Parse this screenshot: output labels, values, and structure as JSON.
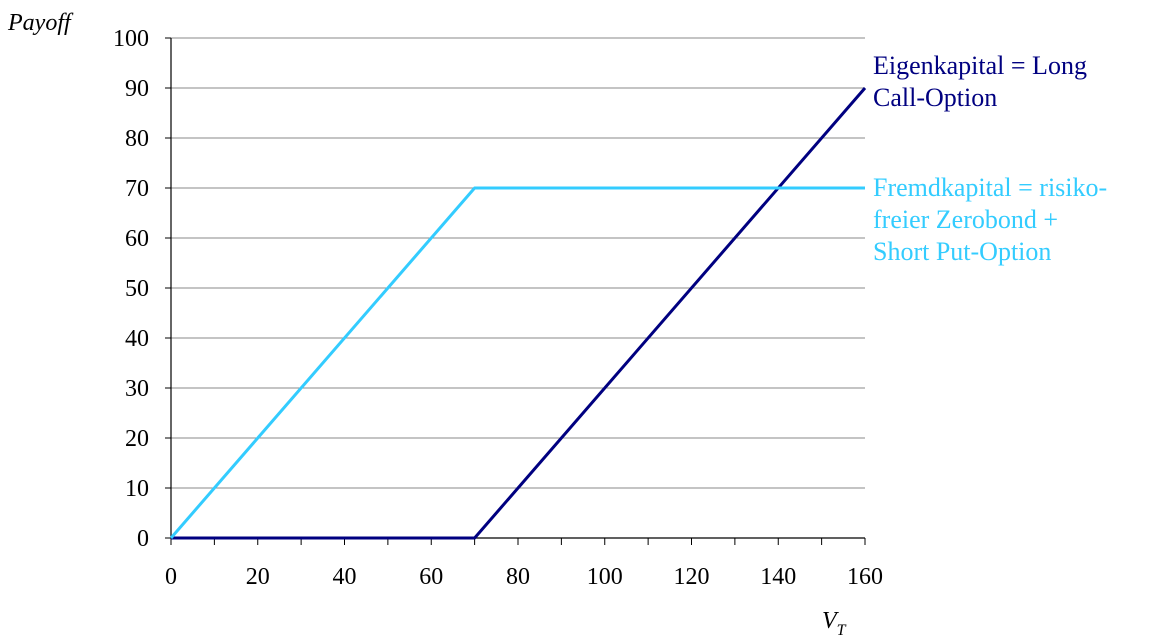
{
  "chart_data": {
    "type": "line",
    "ylabel": "Payoff",
    "xlabel": "V",
    "xlabel_subscript": "T",
    "xlim": [
      0,
      160
    ],
    "ylim": [
      0,
      100
    ],
    "x_ticks": [
      0,
      20,
      40,
      60,
      80,
      100,
      120,
      140,
      160
    ],
    "y_ticks": [
      0,
      10,
      20,
      30,
      40,
      50,
      60,
      70,
      80,
      90,
      100
    ],
    "x_minor_tick_step": 10,
    "grid": "horizontal",
    "series": [
      {
        "name": "Eigenkapital = Long Call-Option",
        "label_lines": [
          "Eigenkapital = Long",
          "Call-Option"
        ],
        "color": "#000080",
        "x": [
          0,
          70,
          160
        ],
        "y": [
          0,
          0,
          90
        ]
      },
      {
        "name": "Fremdkapital = risikofreier Zerobond + Short Put-Option",
        "label_lines": [
          "Fremdkapital = risiko-",
          "freier Zerobond +",
          "Short Put-Option"
        ],
        "color": "#33CCFF",
        "x": [
          0,
          70,
          160
        ],
        "y": [
          0,
          70,
          70
        ]
      }
    ]
  }
}
